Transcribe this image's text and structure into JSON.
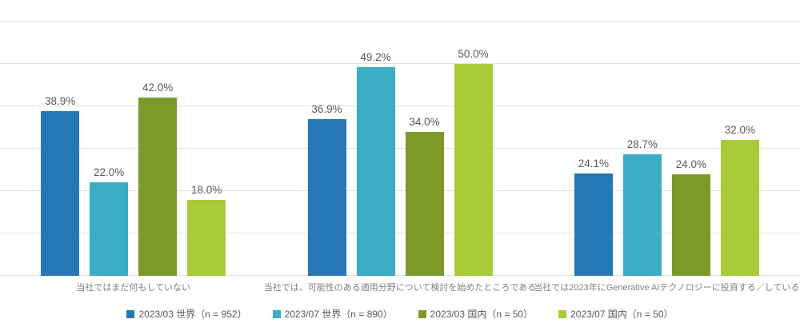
{
  "chart_data": {
    "type": "bar",
    "title": "",
    "xlabel": "",
    "ylabel": "",
    "categories": [
      "当社ではまだ何もしていない",
      "当社では、可能性のある適用分野について検討を始めたところである",
      "当社では2023年にGenerative AIテクノロジーに投資する／している"
    ],
    "series": [
      {
        "name": "2023/03 世界（n = 952）",
        "color": "#2577B6",
        "values": [
          38.9,
          36.9,
          24.1
        ]
      },
      {
        "name": "2023/07 世界（n = 890）",
        "color": "#3BADC5",
        "values": [
          22.0,
          49.2,
          28.7
        ]
      },
      {
        "name": "2023/03 国内（n = 50）",
        "color": "#7D9A28",
        "values": [
          42.0,
          34.0,
          24.0
        ]
      },
      {
        "name": "2023/07 国内（n = 50）",
        "color": "#A9CB38",
        "values": [
          18.0,
          50.0,
          32.0
        ]
      }
    ],
    "value_labels": [
      [
        "38.9%",
        "36.9%",
        "24.1%"
      ],
      [
        "22.0%",
        "49.2%",
        "28.7%"
      ],
      [
        "42.0%",
        "34.0%",
        "24.0%"
      ],
      [
        "18.0%",
        "50.0%",
        "32.0%"
      ]
    ],
    "ylim": [
      0,
      60
    ],
    "grid_step": 10,
    "grid": true,
    "legend_position": "bottom"
  },
  "style": {
    "grid_color": "#E3E3E3",
    "value_label_color": "#595959",
    "category_label_color": "#808080",
    "legend_text_color": "#595959",
    "background": "#FFFFFF"
  }
}
